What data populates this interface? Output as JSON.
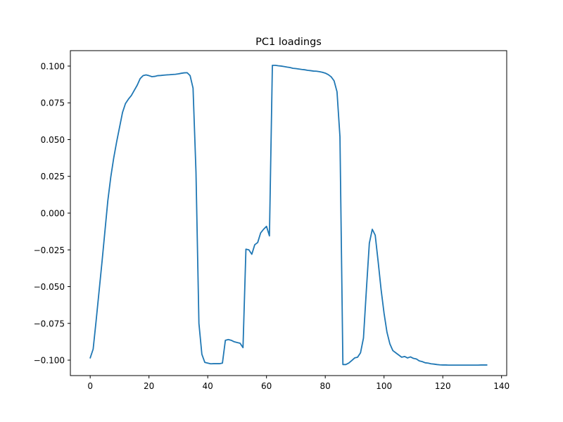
{
  "chart_data": {
    "type": "line",
    "title": "PC1 loadings",
    "xlabel": "",
    "ylabel": "",
    "xlim": [
      -6.75,
      141.75
    ],
    "ylim": [
      -0.1105,
      0.1105
    ],
    "xticks": [
      0,
      20,
      40,
      60,
      80,
      100,
      120,
      140
    ],
    "xtick_labels": [
      "0",
      "20",
      "40",
      "60",
      "80",
      "100",
      "120",
      "140"
    ],
    "yticks": [
      -0.1,
      -0.075,
      -0.05,
      -0.025,
      0.0,
      0.025,
      0.05,
      0.075,
      0.1
    ],
    "ytick_labels": [
      "−0.100",
      "−0.075",
      "−0.050",
      "−0.025",
      "0.000",
      "0.025",
      "0.050",
      "0.075",
      "0.100"
    ],
    "grid": false,
    "line_color": "#1f77b4",
    "series": [
      {
        "values": [
          -0.0985,
          -0.0925,
          -0.0735,
          -0.0535,
          -0.0335,
          -0.0125,
          0.0085,
          0.0245,
          0.0375,
          0.0485,
          0.0585,
          0.0685,
          0.0745,
          0.0775,
          0.08,
          0.0835,
          0.087,
          0.0915,
          0.0935,
          0.094,
          0.0935,
          0.0928,
          0.093,
          0.0935,
          0.0936,
          0.0938,
          0.094,
          0.0941,
          0.0943,
          0.0944,
          0.0947,
          0.0951,
          0.0954,
          0.0955,
          0.0935,
          0.085,
          0.028,
          -0.075,
          -0.096,
          -0.1015,
          -0.102,
          -0.1025,
          -0.1024,
          -0.1024,
          -0.1024,
          -0.102,
          -0.0865,
          -0.086,
          -0.0865,
          -0.0875,
          -0.088,
          -0.0885,
          -0.0915,
          -0.0245,
          -0.025,
          -0.028,
          -0.0215,
          -0.02,
          -0.0135,
          -0.011,
          -0.009,
          -0.0155,
          0.1005,
          0.1005,
          0.1002,
          0.1,
          0.0997,
          0.0993,
          0.099,
          0.0985,
          0.0983,
          0.098,
          0.0977,
          0.0975,
          0.0971,
          0.0969,
          0.0966,
          0.0965,
          0.0962,
          0.0958,
          0.0952,
          0.0942,
          0.0927,
          0.09,
          0.0825,
          0.052,
          -0.103,
          -0.103,
          -0.102,
          -0.1003,
          -0.0985,
          -0.098,
          -0.095,
          -0.085,
          -0.052,
          -0.0205,
          -0.011,
          -0.015,
          -0.033,
          -0.052,
          -0.068,
          -0.081,
          -0.089,
          -0.0935,
          -0.095,
          -0.0965,
          -0.098,
          -0.0975,
          -0.0985,
          -0.0978,
          -0.0988,
          -0.0992,
          -0.1005,
          -0.101,
          -0.1018,
          -0.102,
          -0.1025,
          -0.1027,
          -0.103,
          -0.1032,
          -0.1033,
          -0.1033,
          -0.1034,
          -0.1034,
          -0.1034,
          -0.1034,
          -0.1034,
          -0.1034,
          -0.1034,
          -0.1034,
          -0.1034,
          -0.1034,
          -0.1034,
          -0.1033,
          -0.1033,
          -0.1033
        ]
      }
    ]
  }
}
